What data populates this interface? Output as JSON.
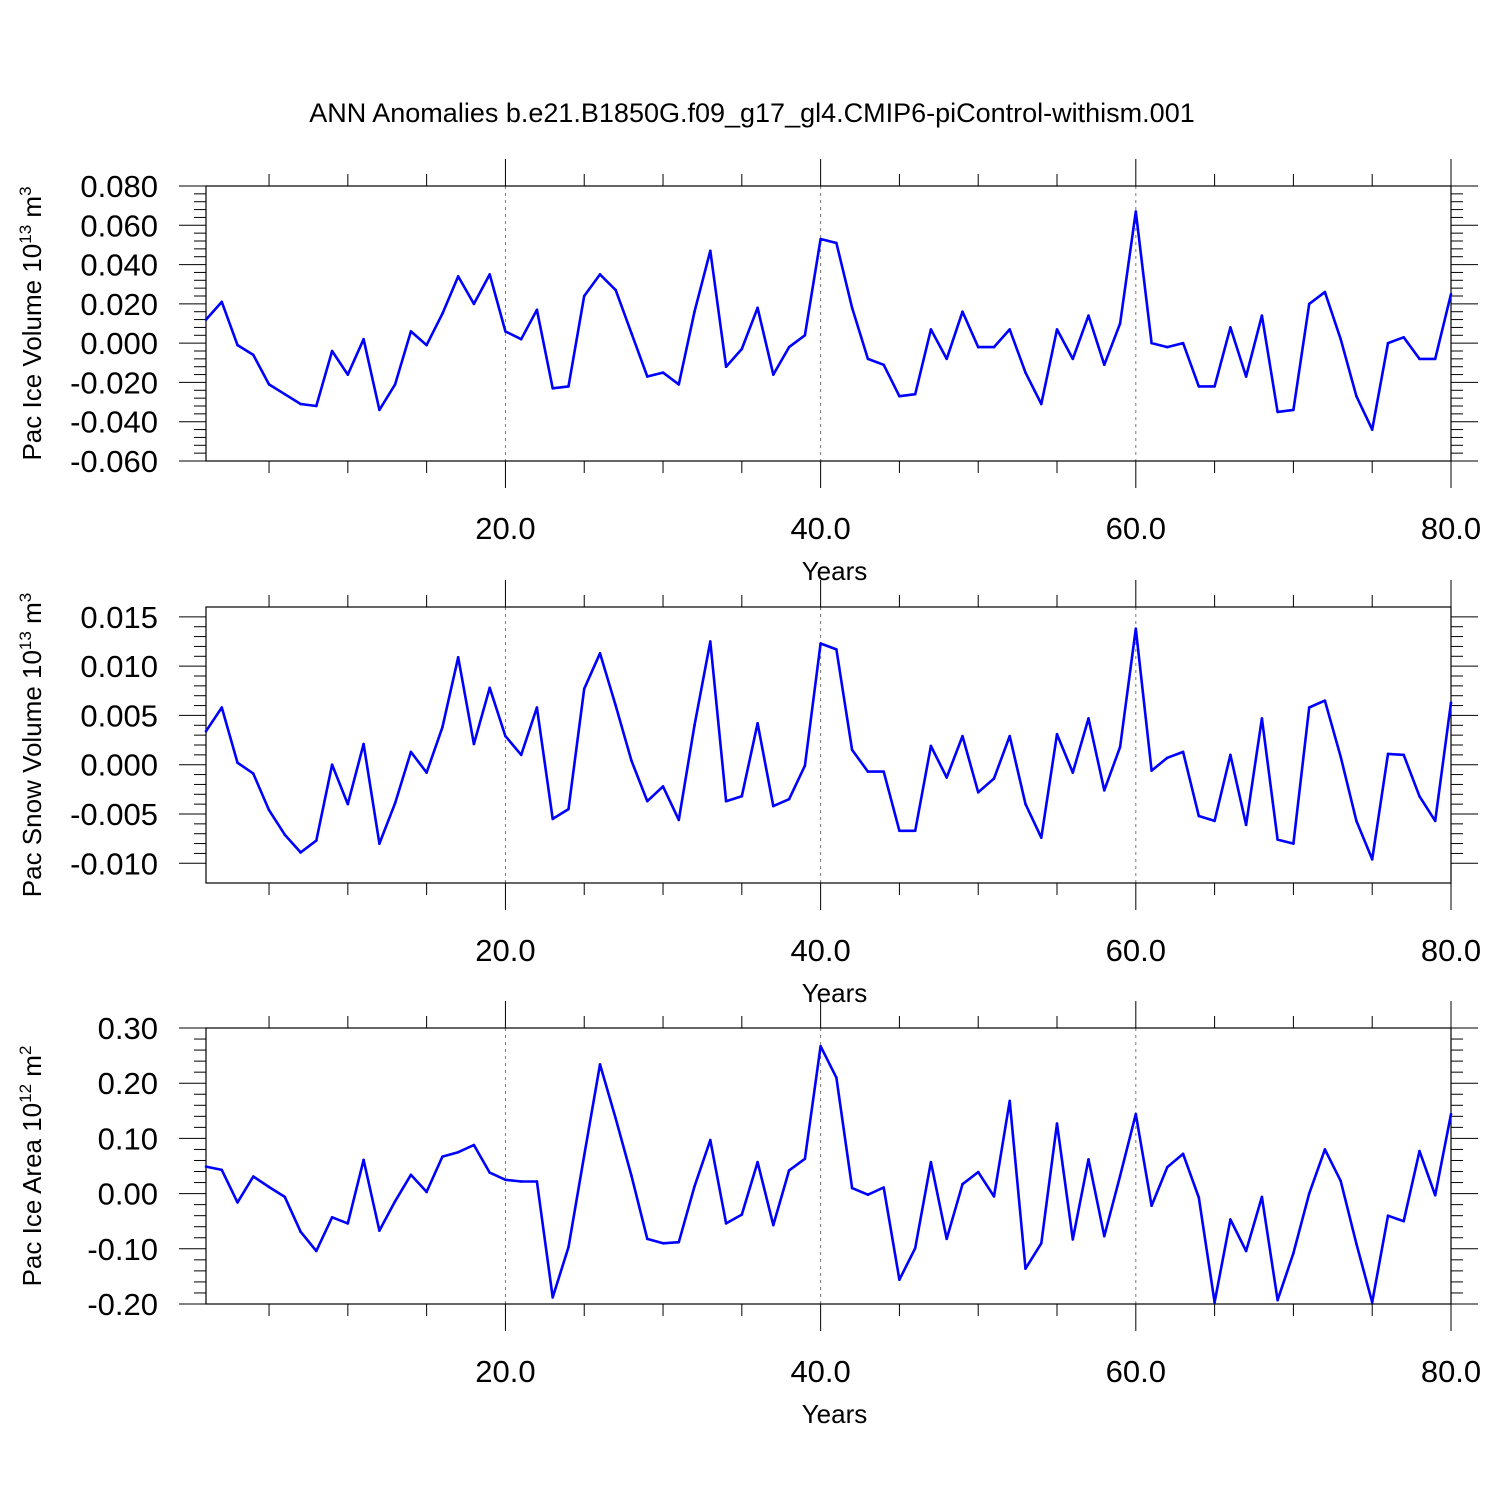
{
  "figure": {
    "title": "ANN Anomalies b.e21.B1850G.f09_g17_gl4.CMIP6-piControl-withism.001"
  },
  "chart_data": [
    {
      "type": "line",
      "ylabel_main": "Pac Ice Volume 10",
      "ylabel_exp": "13",
      "ylabel_unit": "m",
      "ylabel_unit_exp": "3",
      "xlabel": "Years",
      "xlim": [
        1,
        80
      ],
      "ylim": [
        -0.06,
        0.08
      ],
      "xticks": [
        20,
        40,
        60,
        80
      ],
      "xtick_labels": [
        "20.0",
        "40.0",
        "60.0",
        "80.0"
      ],
      "yticks": [
        -0.06,
        -0.04,
        -0.02,
        0.0,
        0.02,
        0.04,
        0.06,
        0.08
      ],
      "ytick_labels": [
        "-0.060",
        "-0.040",
        "-0.020",
        "0.000",
        "0.020",
        "0.040",
        "0.060",
        "0.080"
      ],
      "vgrid_dashed_at": [
        20,
        40,
        60
      ],
      "line_color": "#0000ff",
      "x_start": 1,
      "values": [
        0.012,
        0.021,
        -0.001,
        -0.006,
        -0.021,
        -0.026,
        -0.031,
        -0.032,
        -0.004,
        -0.016,
        0.002,
        -0.034,
        -0.021,
        0.006,
        -0.001,
        0.015,
        0.034,
        0.02,
        0.035,
        0.006,
        0.002,
        0.017,
        -0.023,
        -0.022,
        0.024,
        0.035,
        0.027,
        0.005,
        -0.017,
        -0.015,
        -0.021,
        0.016,
        0.047,
        -0.012,
        -0.003,
        0.018,
        -0.016,
        -0.002,
        0.004,
        0.053,
        0.051,
        0.018,
        -0.008,
        -0.011,
        -0.027,
        -0.026,
        0.007,
        -0.008,
        0.016,
        -0.002,
        -0.002,
        0.007,
        -0.015,
        -0.031,
        0.007,
        -0.008,
        0.014,
        -0.011,
        0.01,
        0.067,
        0.0,
        -0.002,
        0.0,
        -0.022,
        -0.022,
        0.008,
        -0.017,
        0.014,
        -0.035,
        -0.034,
        0.02,
        0.026,
        0.002,
        -0.027,
        -0.044,
        0.0,
        0.003,
        -0.008,
        -0.008,
        0.025
      ]
    },
    {
      "type": "line",
      "ylabel_main": "Pac Snow Volume 10",
      "ylabel_exp": "13",
      "ylabel_unit": "m",
      "ylabel_unit_exp": "3",
      "xlabel": "Years",
      "xlim": [
        1,
        80
      ],
      "ylim": [
        -0.012,
        0.016
      ],
      "xticks": [
        20,
        40,
        60,
        80
      ],
      "xtick_labels": [
        "20.0",
        "40.0",
        "60.0",
        "80.0"
      ],
      "yticks": [
        -0.01,
        -0.005,
        0.0,
        0.005,
        0.01,
        0.015
      ],
      "ytick_labels": [
        "-0.010",
        "-0.005",
        "0.000",
        "0.005",
        "0.010",
        "0.015"
      ],
      "vgrid_dashed_at": [
        20,
        40,
        60
      ],
      "line_color": "#0000ff",
      "x_start": 1,
      "values": [
        0.0034,
        0.0058,
        0.0002,
        -0.0009,
        -0.0046,
        -0.0071,
        -0.0089,
        -0.0077,
        0.0,
        -0.004,
        0.0021,
        -0.008,
        -0.0039,
        0.0013,
        -0.0008,
        0.0038,
        0.0109,
        0.0021,
        0.0078,
        0.0029,
        0.001,
        0.0058,
        -0.0055,
        -0.0045,
        0.0077,
        0.0113,
        0.006,
        0.0004,
        -0.0037,
        -0.0022,
        -0.0056,
        0.004,
        0.0125,
        -0.0037,
        -0.0032,
        0.0042,
        -0.0042,
        -0.0035,
        -0.0001,
        0.0123,
        0.0117,
        0.0015,
        -0.0007,
        -0.0007,
        -0.0067,
        -0.0067,
        0.0019,
        -0.0013,
        0.0029,
        -0.0028,
        -0.0014,
        0.0029,
        -0.004,
        -0.0074,
        0.0031,
        -0.0008,
        0.0047,
        -0.0026,
        0.0018,
        0.0138,
        -0.0006,
        0.0007,
        0.0013,
        -0.0052,
        -0.0057,
        0.001,
        -0.0061,
        0.0047,
        -0.0076,
        -0.008,
        0.0058,
        0.0065,
        0.0008,
        -0.0057,
        -0.0096,
        0.0011,
        0.001,
        -0.0032,
        -0.0057,
        0.0063
      ]
    },
    {
      "type": "line",
      "ylabel_main": "Pac Ice Area 10",
      "ylabel_exp": "12",
      "ylabel_unit": "m",
      "ylabel_unit_exp": "2",
      "xlabel": "Years",
      "xlim": [
        1,
        80
      ],
      "ylim": [
        -0.2,
        0.3
      ],
      "xticks": [
        20,
        40,
        60,
        80
      ],
      "xtick_labels": [
        "20.0",
        "40.0",
        "60.0",
        "80.0"
      ],
      "yticks": [
        -0.2,
        -0.1,
        0.0,
        0.1,
        0.2,
        0.3
      ],
      "ytick_labels": [
        "-0.20",
        "-0.10",
        "0.00",
        "0.10",
        "0.20",
        "0.30"
      ],
      "vgrid_dashed_at": [
        20,
        40,
        60
      ],
      "line_color": "#0000ff",
      "x_start": 1,
      "values": [
        0.049,
        0.043,
        -0.016,
        0.031,
        0.012,
        -0.006,
        -0.069,
        -0.104,
        -0.043,
        -0.054,
        0.061,
        -0.067,
        -0.014,
        0.034,
        0.003,
        0.067,
        0.075,
        0.088,
        0.038,
        0.025,
        0.022,
        0.022,
        -0.188,
        -0.097,
        0.069,
        0.234,
        0.136,
        0.032,
        -0.082,
        -0.09,
        -0.088,
        0.013,
        0.097,
        -0.054,
        -0.038,
        0.057,
        -0.057,
        0.042,
        0.063,
        0.267,
        0.21,
        0.01,
        -0.002,
        0.011,
        -0.156,
        -0.099,
        0.057,
        -0.082,
        0.017,
        0.039,
        -0.005,
        0.168,
        -0.136,
        -0.09,
        0.127,
        -0.083,
        0.062,
        -0.077,
        0.032,
        0.144,
        -0.022,
        0.048,
        0.072,
        -0.007,
        -0.197,
        -0.047,
        -0.104,
        -0.006,
        -0.193,
        -0.108,
        0.0,
        0.08,
        0.023,
        -0.091,
        -0.197,
        -0.04,
        -0.05,
        0.077,
        -0.003,
        0.144
      ]
    }
  ]
}
